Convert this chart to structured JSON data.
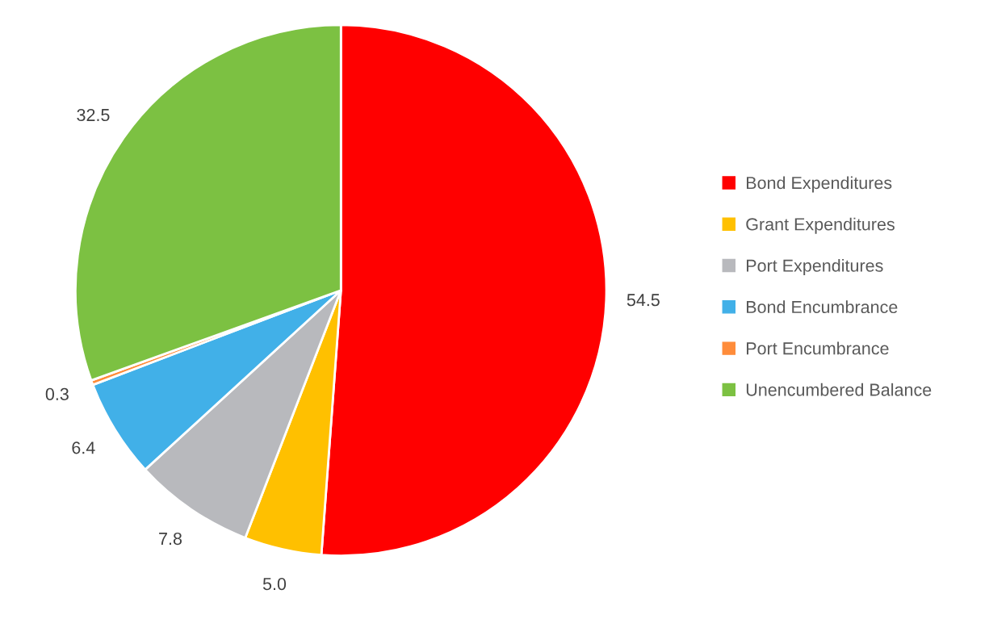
{
  "chart_data": {
    "type": "pie",
    "categories": [
      "Bond Expenditures",
      "Grant Expenditures",
      "Port Expenditures",
      "Bond Encumbrance",
      "Port Encumbrance",
      "Unencumbered Balance"
    ],
    "values": [
      54.5,
      5.0,
      7.8,
      6.4,
      0.3,
      32.5
    ],
    "value_labels": [
      "54.5",
      "5.0",
      "7.8",
      "6.4",
      "0.3",
      "32.5"
    ],
    "colors": [
      "#ff0000",
      "#ffc000",
      "#b8b9bd",
      "#41b0e8",
      "#ff8c3a",
      "#7cc142"
    ],
    "legend": "right"
  }
}
